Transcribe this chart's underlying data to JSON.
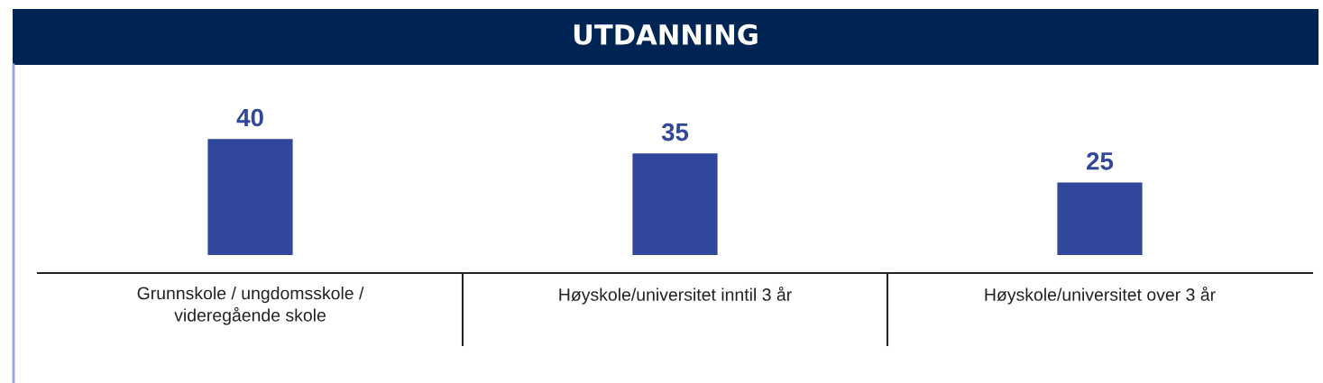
{
  "chart_data": {
    "type": "bar",
    "title": "UTDANNING",
    "categories": [
      "Grunnskole / ungdomsskole / videregående skole",
      "Høyskole/universitet inntil 3 år",
      "Høyskole/universitet over 3 år"
    ],
    "values": [
      40,
      35,
      25
    ],
    "color": "#30479b",
    "data_labels": true
  }
}
